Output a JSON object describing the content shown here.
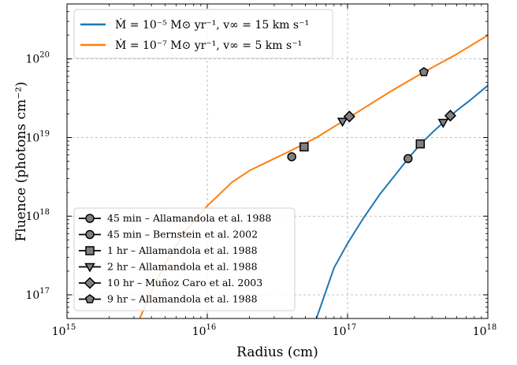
{
  "chart_data": {
    "type": "line",
    "xlabel": "Radius (cm)",
    "ylabel": "Fluence (photons cm⁻²)",
    "xscale": "log",
    "yscale": "log",
    "xlim": [
      1000000000000000.0,
      1e+18
    ],
    "ylim": [
      5e+16,
      5e+20
    ],
    "x_ticks": [
      {
        "value": 1000000000000000.0,
        "label": "10",
        "exp": "15"
      },
      {
        "value": 1e+16,
        "label": "10",
        "exp": "16"
      },
      {
        "value": 1e+17,
        "label": "10",
        "exp": "17"
      },
      {
        "value": 1e+18,
        "label": "10",
        "exp": "18"
      }
    ],
    "y_ticks": [
      {
        "value": 1e+17,
        "label": "10",
        "exp": "17"
      },
      {
        "value": 1e+18,
        "label": "10",
        "exp": "18"
      },
      {
        "value": 1e+19,
        "label": "10",
        "exp": "19"
      },
      {
        "value": 1e+20,
        "label": "10",
        "exp": "20"
      }
    ],
    "grid": true,
    "series": [
      {
        "name": "Ṁ = 10⁻⁵ M⊙ yr⁻¹, v∞ = 15 km s⁻¹",
        "color": "#1f77b4",
        "x": [
          6e+16,
          7e+16,
          8e+16,
          1e+17,
          1.3e+17,
          1.7e+17,
          2.2e+17,
          2.7e+17,
          3.3e+17,
          4e+17,
          5e+17,
          6e+17,
          7.5e+17,
          1e+18
        ],
        "y": [
          5e+16,
          1.1e+17,
          2.2e+17,
          4.5e+17,
          9.5e+17,
          1.9e+18,
          3.4e+18,
          5.4e+18,
          8.2e+18,
          1.15e+19,
          1.65e+19,
          2.2e+19,
          3e+19,
          4.6e+19
        ]
      },
      {
        "name": "Ṁ = 10⁻⁷ M⊙ yr⁻¹, v∞ = 5 km s⁻¹",
        "color": "#ff7f0e",
        "x": [
          3300000000000000.0,
          4000000000000000.0,
          5000000000000000.0,
          7000000000000000.0,
          1e+16,
          1.5e+16,
          2e+16,
          3e+16,
          4e+16,
          6e+16,
          1e+17,
          2e+17,
          3.5e+17,
          6e+17,
          1e+18
        ],
        "y": [
          5e+16,
          1.1e+17,
          2.5e+17,
          6.5e+17,
          1.35e+18,
          2.7e+18,
          3.8e+18,
          5.4e+18,
          6.9e+18,
          1e+19,
          1.75e+19,
          3.8e+19,
          6.8e+19,
          1.15e+20,
          2e+20
        ]
      }
    ],
    "markers": [
      {
        "name": "45 min  –  Allamandola et al. 1988",
        "shape": "circle",
        "points": [
          [
            4e+16,
            5.7e+18
          ],
          [
            2.7e+17,
            5.4e+18
          ]
        ]
      },
      {
        "name": "45 min  –  Bernstein et al. 2002",
        "shape": "circle",
        "points": []
      },
      {
        "name": "1 hr  –  Allamandola et al. 1988",
        "shape": "square",
        "points": [
          [
            4.9e+16,
            7.6e+18
          ],
          [
            3.3e+17,
            8.3e+18
          ]
        ]
      },
      {
        "name": "2 hr  –  Allamandola et al. 1988",
        "shape": "triangle-down",
        "points": [
          [
            9.2e+16,
            1.6e+19
          ],
          [
            4.8e+17,
            1.55e+19
          ]
        ]
      },
      {
        "name": "10 hr  –  Muñoz Caro et al. 2003",
        "shape": "diamond",
        "points": [
          [
            1.03e+17,
            1.85e+19
          ],
          [
            5.4e+17,
            1.9e+19
          ]
        ]
      },
      {
        "name": "9 hr  –  Allamandola et al. 1988",
        "shape": "pentagon",
        "points": [
          [
            3.5e+17,
            6.8e+19
          ]
        ]
      }
    ],
    "legend_upper_position": "upper-left",
    "legend_lower_position": "lower-left"
  }
}
